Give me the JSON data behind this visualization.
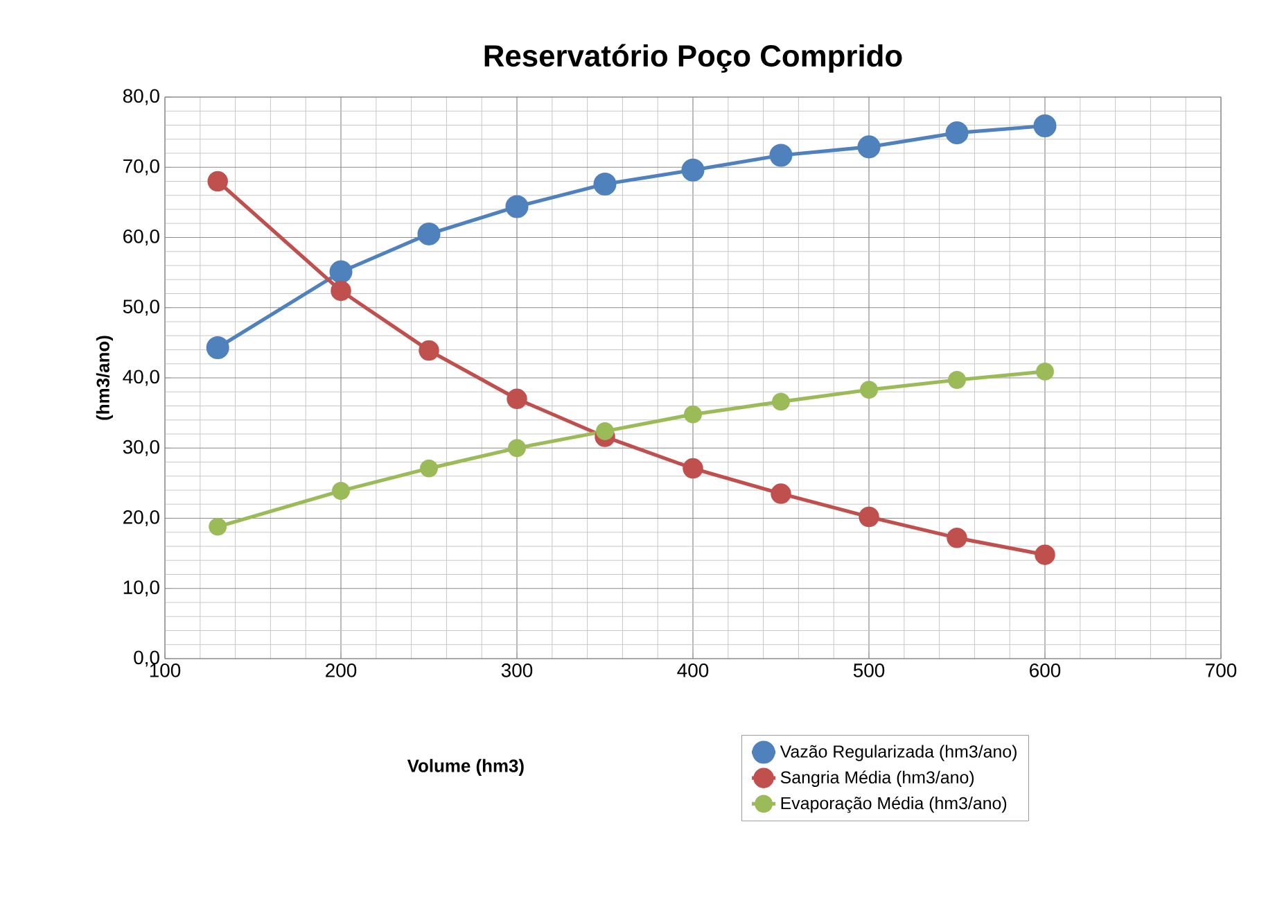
{
  "chart_data": {
    "type": "line",
    "title": "Reservatório Poço Comprido",
    "xlabel": "Volume (hm3)",
    "ylabel": "(hm3/ano)",
    "x": [
      130,
      200,
      250,
      300,
      350,
      400,
      450,
      500,
      550,
      600
    ],
    "series": [
      {
        "name": "Vazão Regularizada (hm3/ano)",
        "color": "#4f81bd",
        "values": [
          44.3,
          55.1,
          60.5,
          64.4,
          67.6,
          69.6,
          71.7,
          72.9,
          74.9,
          75.9
        ]
      },
      {
        "name": "Sangria Média (hm3/ano)",
        "color": "#c0504d",
        "values": [
          68.0,
          52.4,
          43.9,
          37.0,
          31.6,
          27.1,
          23.5,
          20.2,
          17.2,
          14.8
        ]
      },
      {
        "name": "Evaporação Média (hm3/ano)",
        "color": "#9bbb59",
        "values": [
          18.8,
          23.9,
          27.1,
          30.0,
          32.4,
          34.8,
          36.6,
          38.3,
          39.7,
          40.9
        ]
      }
    ],
    "xlim": [
      100,
      700
    ],
    "xticks": [
      100,
      200,
      300,
      400,
      500,
      600,
      700
    ],
    "ylim": [
      0,
      80
    ],
    "yticks": [
      {
        "value": 0,
        "label": "0,0"
      },
      {
        "value": 10,
        "label": "10,0"
      },
      {
        "value": 20,
        "label": "20,0"
      },
      {
        "value": 30,
        "label": "30,0"
      },
      {
        "value": 40,
        "label": "40,0"
      },
      {
        "value": 50,
        "label": "50,0"
      },
      {
        "value": 60,
        "label": "60,0"
      },
      {
        "value": 70,
        "label": "70,0"
      },
      {
        "value": 80,
        "label": "80,0"
      }
    ],
    "grid": true,
    "legend": "bottom right",
    "marker": "circle",
    "line_style": "solid"
  }
}
